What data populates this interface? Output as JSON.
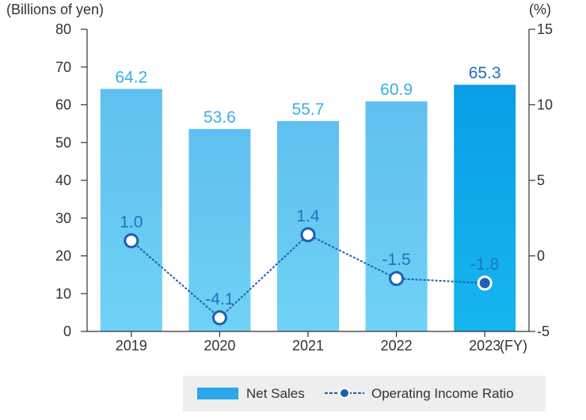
{
  "chart_data": {
    "type": "bar",
    "categories": [
      "2019",
      "2020",
      "2021",
      "2022",
      "2023"
    ],
    "x_suffix": "(FY)",
    "series": [
      {
        "name": "Net Sales",
        "kind": "bar",
        "axis": "left",
        "values": [
          64.2,
          53.6,
          55.7,
          60.9,
          65.3
        ],
        "labels": [
          "64.2",
          "53.6",
          "55.7",
          "60.9",
          "65.3"
        ],
        "color": "#66c4f0",
        "highlight_color": "#0a9ee6",
        "label_color": "#3aaee8",
        "highlight_label_color": "#1c6fbf"
      },
      {
        "name": "Operating Income Ratio",
        "kind": "line",
        "axis": "right",
        "values": [
          1.0,
          -4.1,
          1.4,
          -1.5,
          -1.8
        ],
        "labels": [
          "1.0",
          "-4.1",
          "1.4",
          "-1.5",
          "-1.8"
        ],
        "color": "#1f5fb0"
      }
    ],
    "left_axis": {
      "label": "(Billions of yen)",
      "ylim": [
        0,
        80
      ],
      "ticks": [
        "0",
        "10",
        "20",
        "30",
        "40",
        "50",
        "60",
        "70",
        "80"
      ]
    },
    "right_axis": {
      "label": "(%)",
      "ylim": [
        -5,
        15
      ],
      "ticks": [
        "-5",
        "0",
        "5",
        "10",
        "15"
      ]
    },
    "legend": {
      "position": "bottom-right",
      "items": [
        "Net Sales",
        "Operating Income Ratio"
      ]
    }
  }
}
